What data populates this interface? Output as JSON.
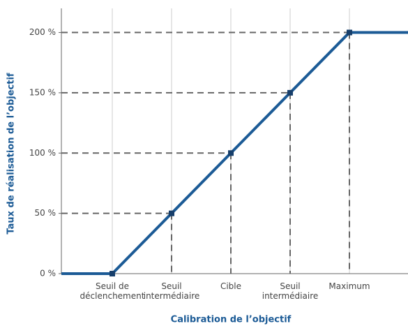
{
  "chart_data": {
    "type": "line",
    "categories": [
      "Seuil de déclenchement",
      "Seuil intermédiaire",
      "Cible",
      "Seuil intermédiaire",
      "Maximum"
    ],
    "series": [
      {
        "name": null,
        "color": "#1c5b96",
        "values": [
          0,
          50,
          100,
          150,
          200
        ]
      }
    ],
    "ylim": [
      0,
      220
    ],
    "yticks": [
      {
        "value": 0,
        "label": "0 %"
      },
      {
        "value": 50,
        "label": "50 %"
      },
      {
        "value": 100,
        "label": "100 %"
      },
      {
        "value": 150,
        "label": "150 %"
      },
      {
        "value": 200,
        "label": "200 %"
      }
    ],
    "xlabel": "Calibration de l’objectif",
    "ylabel": "Taux de réalisation de l’objectif",
    "grid": true
  }
}
